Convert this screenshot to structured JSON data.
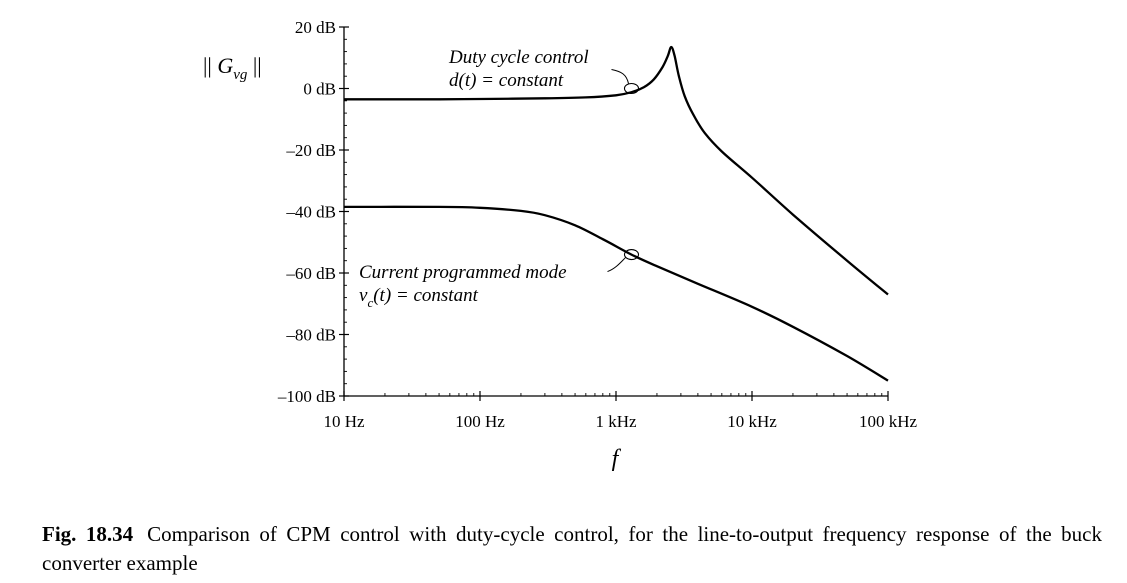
{
  "chart_data": {
    "type": "line",
    "xscale": "log",
    "xlim": [
      10,
      100000
    ],
    "ylim": [
      -100,
      20
    ],
    "ylabel": {
      "prefix": "|| ",
      "main": "G",
      "sub": "vg",
      "suffix": " ||"
    },
    "xlabel": "f",
    "yticks": [
      {
        "value": 20,
        "label": "20 dB"
      },
      {
        "value": 0,
        "label": "0 dB"
      },
      {
        "value": -20,
        "label": "–20 dB"
      },
      {
        "value": -40,
        "label": "–40 dB"
      },
      {
        "value": -60,
        "label": "–60 dB"
      },
      {
        "value": -80,
        "label": "–80 dB"
      },
      {
        "value": -100,
        "label": "–100 dB"
      }
    ],
    "xticks": [
      {
        "value": 10,
        "label": "10 Hz"
      },
      {
        "value": 100,
        "label": "100 Hz"
      },
      {
        "value": 1000,
        "label": "1 kHz"
      },
      {
        "value": 10000,
        "label": "10 kHz"
      },
      {
        "value": 100000,
        "label": "100 kHz"
      }
    ],
    "series": [
      {
        "name": "Duty cycle control",
        "annotation_line1": "Duty cycle control",
        "annotation_line2": "d(t) = constant",
        "marker_at": [
          1300,
          0
        ],
        "points": [
          [
            10,
            -3.5
          ],
          [
            50,
            -3.5
          ],
          [
            100,
            -3.4
          ],
          [
            300,
            -3.2
          ],
          [
            600,
            -2.9
          ],
          [
            1000,
            -2.2
          ],
          [
            1300,
            -1.2
          ],
          [
            1600,
            0.4
          ],
          [
            1900,
            3.0
          ],
          [
            2200,
            7.0
          ],
          [
            2400,
            10.5
          ],
          [
            2550,
            13.5
          ],
          [
            2700,
            10.5
          ],
          [
            2900,
            4.0
          ],
          [
            3200,
            -2.5
          ],
          [
            3700,
            -8.5
          ],
          [
            4500,
            -14.5
          ],
          [
            6000,
            -20.5
          ],
          [
            10000,
            -29.0
          ],
          [
            20000,
            -41.0
          ],
          [
            50000,
            -56.0
          ],
          [
            100000,
            -67.0
          ]
        ]
      },
      {
        "name": "Current programmed mode",
        "annotation_line1": "Current programmed mode",
        "annotation_var": "v",
        "annotation_sub": "c",
        "annotation_rest": "(t) = constant",
        "marker_at": [
          1300,
          -54
        ],
        "points": [
          [
            10,
            -38.5
          ],
          [
            50,
            -38.5
          ],
          [
            100,
            -38.8
          ],
          [
            200,
            -39.8
          ],
          [
            300,
            -41.2
          ],
          [
            500,
            -44.5
          ],
          [
            800,
            -49.0
          ],
          [
            1300,
            -54.0
          ],
          [
            2000,
            -57.8
          ],
          [
            4000,
            -63.5
          ],
          [
            10000,
            -71.0
          ],
          [
            20000,
            -77.5
          ],
          [
            50000,
            -87.0
          ],
          [
            100000,
            -95.0
          ]
        ]
      }
    ]
  },
  "caption": {
    "figure_number": "Fig. 18.34",
    "text": "Comparison of CPM control with duty-cycle control, for the line-to-output frequency response of the buck converter example"
  }
}
